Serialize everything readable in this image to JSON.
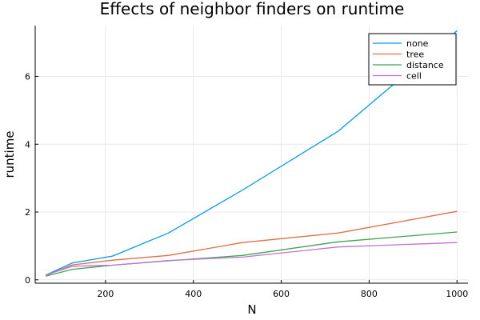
{
  "chart_data": {
    "type": "line",
    "title": "Effects of neighbor finders on runtime",
    "xlabel": "N",
    "ylabel": "runtime",
    "xlim": [
      40,
      1025
    ],
    "ylim": [
      -0.1,
      7.5
    ],
    "xticks": [
      200,
      400,
      600,
      800,
      1000
    ],
    "yticks": [
      0,
      2,
      4,
      6
    ],
    "grid": true,
    "legend_position": "top-right",
    "x": [
      64,
      125,
      216,
      343,
      512,
      729,
      1000
    ],
    "series": [
      {
        "name": "none",
        "color": "#009AFA",
        "values": [
          0.14,
          0.5,
          0.7,
          1.38,
          2.65,
          4.38,
          7.35
        ]
      },
      {
        "name": "tree",
        "color": "#E36F47",
        "values": [
          0.13,
          0.44,
          0.58,
          0.72,
          1.1,
          1.38,
          2.02
        ]
      },
      {
        "name": "distance",
        "color": "#3EA44E",
        "values": [
          0.11,
          0.31,
          0.43,
          0.56,
          0.72,
          1.12,
          1.41
        ]
      },
      {
        "name": "cell",
        "color": "#C371D2",
        "values": [
          0.14,
          0.4,
          0.43,
          0.57,
          0.67,
          0.97,
          1.1
        ]
      }
    ]
  }
}
